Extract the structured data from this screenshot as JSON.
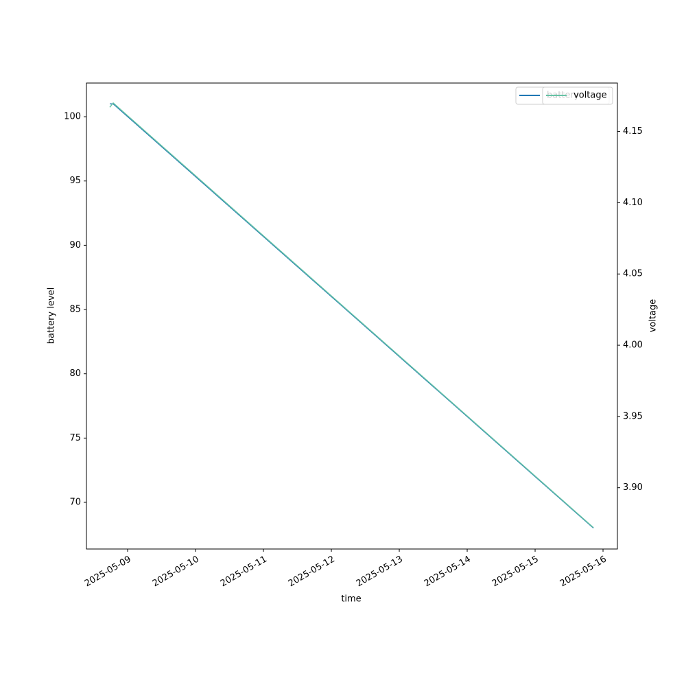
{
  "chart_data": {
    "type": "line",
    "x_label": "time",
    "y_label": "battery level",
    "y2_label": "voltage",
    "x": [
      "2025-05-08T17:42",
      "2025-05-08T18:55",
      "2025-05-15T20:37"
    ],
    "series": [
      {
        "name": "battery",
        "color": "#1f77b4",
        "values": [
          101,
          101,
          68
        ]
      },
      {
        "name": "voltage",
        "color": "#66c2a5",
        "axis": "y2",
        "values": [
          4.167,
          4.17,
          3.872
        ]
      }
    ],
    "xlim": [
      "2025-05-08T09:27",
      "2025-05-16T05:05"
    ],
    "xticks": [
      "2025-05-09",
      "2025-05-10",
      "2025-05-11",
      "2025-05-12",
      "2025-05-13",
      "2025-05-14",
      "2025-05-15",
      "2025-05-16"
    ],
    "ylim": [
      66.37,
      102.62
    ],
    "yticks": [
      70,
      75,
      80,
      85,
      90,
      95,
      100
    ],
    "y2lim": [
      3.857,
      4.184
    ],
    "y2ticks": [
      {
        "value": 3.9,
        "label": "3.90"
      },
      {
        "value": 3.95,
        "label": "3.95"
      },
      {
        "value": 4.0,
        "label": "4.00"
      },
      {
        "value": 4.05,
        "label": "4.05"
      },
      {
        "value": 4.1,
        "label": "4.10"
      },
      {
        "value": 4.15,
        "label": "4.15"
      }
    ],
    "legend": "upper right",
    "grid": false
  }
}
